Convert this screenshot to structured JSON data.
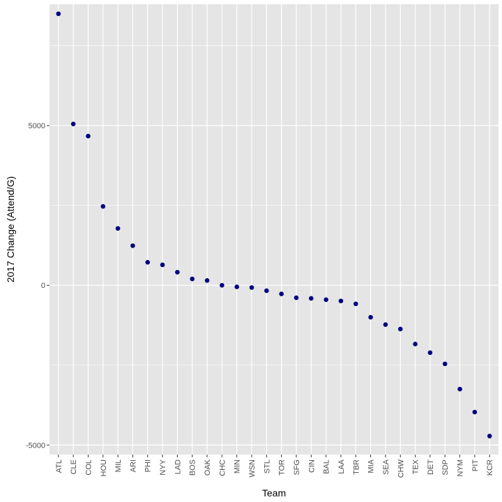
{
  "chart_data": {
    "type": "scatter",
    "title": "",
    "xlabel": "Team",
    "ylabel": "2017 Change (Attend/G)",
    "categories": [
      "ATL",
      "CLE",
      "COL",
      "HOU",
      "MIL",
      "ARI",
      "PHI",
      "NYY",
      "LAD",
      "BOS",
      "OAK",
      "CHC",
      "MIN",
      "WSN",
      "STL",
      "TOR",
      "SFG",
      "CIN",
      "BAL",
      "LAA",
      "TBR",
      "MIA",
      "SEA",
      "CHW",
      "TEX",
      "DET",
      "SDP",
      "NYM",
      "PIT",
      "KCR"
    ],
    "values": [
      8500,
      5050,
      4670,
      2470,
      1780,
      1240,
      720,
      640,
      410,
      200,
      150,
      0,
      -50,
      -70,
      -170,
      -270,
      -390,
      -410,
      -450,
      -490,
      -580,
      -1000,
      -1230,
      -1370,
      -1840,
      -2110,
      -2460,
      -3250,
      -3970,
      -4720
    ],
    "y_ticks": [
      -5000,
      0,
      5000
    ],
    "ylim": [
      -5300,
      8800
    ],
    "grid": true,
    "point_color": "#00007f",
    "panel_color": "#e5e5e5",
    "grid_color": "#ffffff"
  }
}
